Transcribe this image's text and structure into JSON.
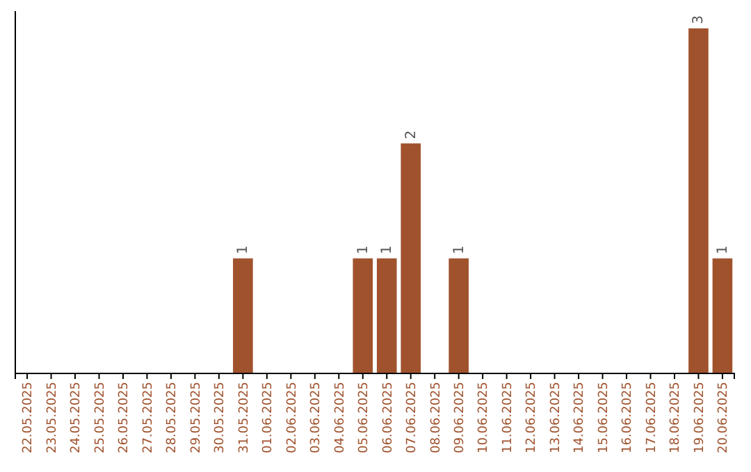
{
  "chart_data": {
    "type": "bar",
    "categories": [
      "22.05.2025",
      "23.05.2025",
      "24.05.2025",
      "25.05.2025",
      "26.05.2025",
      "27.05.2025",
      "28.05.2025",
      "29.05.2025",
      "30.05.2025",
      "31.05.2025",
      "01.06.2025",
      "02.06.2025",
      "03.06.2025",
      "04.06.2025",
      "05.06.2025",
      "06.06.2025",
      "07.06.2025",
      "08.06.2025",
      "09.06.2025",
      "10.06.2025",
      "11.06.2025",
      "12.06.2025",
      "13.06.2025",
      "14.06.2025",
      "15.06.2025",
      "16.06.2025",
      "17.06.2025",
      "18.06.2025",
      "19.06.2025",
      "20.06.2025"
    ],
    "values": [
      0,
      0,
      0,
      0,
      0,
      0,
      0,
      0,
      0,
      1,
      0,
      0,
      0,
      0,
      1,
      1,
      2,
      0,
      1,
      0,
      0,
      0,
      0,
      0,
      0,
      0,
      0,
      0,
      3,
      1
    ],
    "value_labels": [
      null,
      null,
      null,
      null,
      null,
      null,
      null,
      null,
      null,
      "1",
      null,
      null,
      null,
      null,
      "1",
      "1",
      "2",
      null,
      "1",
      null,
      null,
      null,
      null,
      null,
      null,
      null,
      null,
      null,
      "3",
      "1"
    ],
    "color": "#a0522d",
    "ylim": [
      0,
      3.15
    ],
    "tick_labels": "x"
  }
}
